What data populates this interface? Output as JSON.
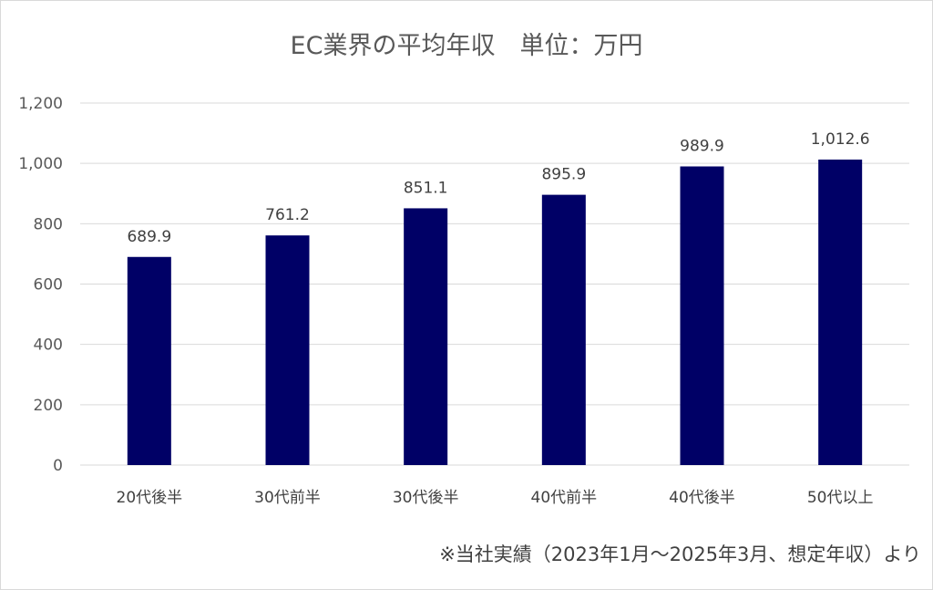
{
  "chart_data": {
    "type": "bar",
    "title": "EC業界の平均年収　単位：万円",
    "categories": [
      "20代後半",
      "30代前半",
      "30代後半",
      "40代前半",
      "40代後半",
      "50代以上"
    ],
    "values": [
      689.9,
      761.2,
      851.1,
      895.9,
      989.9,
      1012.6
    ],
    "data_labels": [
      "689.9",
      "761.2",
      "851.1",
      "895.9",
      "989.9",
      "1,012.6"
    ],
    "y_ticks": [
      0,
      200,
      400,
      600,
      800,
      1000,
      1200
    ],
    "y_tick_labels": [
      "0",
      "200",
      "400",
      "600",
      "800",
      "1,000",
      "1,200"
    ],
    "ylim": [
      0,
      1200
    ],
    "xlabel": "",
    "ylabel": "",
    "grid": true,
    "legend": "none",
    "bar_color": "#000066",
    "note": "※当社実績（2023年1月～2025年3月、想定年収）より"
  }
}
